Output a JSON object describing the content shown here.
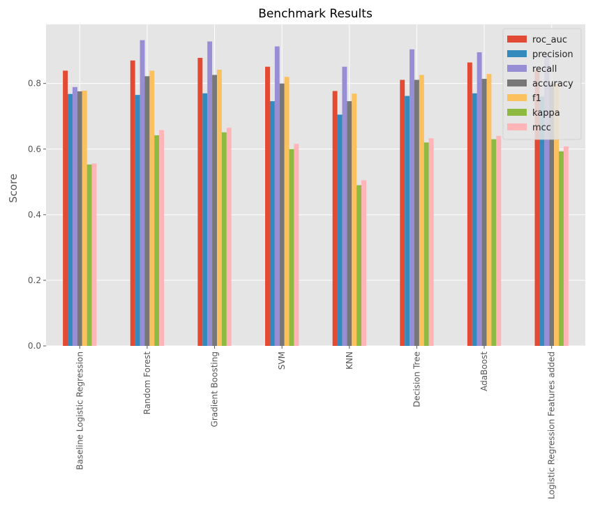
{
  "chart_data": {
    "type": "bar",
    "title": "Benchmark Results",
    "xlabel": "",
    "ylabel": "Score",
    "ylim": [
      0,
      0.98
    ],
    "yticks": [
      0.0,
      0.2,
      0.4,
      0.6,
      0.8
    ],
    "ytick_labels": [
      "0.0",
      "0.2",
      "0.4",
      "0.6",
      "0.8"
    ],
    "grid": true,
    "legend_position": "top-right",
    "categories": [
      "Baseline Logistic Regression",
      "Random Forest",
      "Gradient Boosting",
      "SVM",
      "KNN",
      "Decision Tree",
      "AdaBoost",
      "Logistic Regression Features added"
    ],
    "series": [
      {
        "name": "roc_auc",
        "color": "#e24a33",
        "values": [
          0.839,
          0.87,
          0.878,
          0.851,
          0.777,
          0.811,
          0.864,
          0.84
        ]
      },
      {
        "name": "precision",
        "color": "#348abd",
        "values": [
          0.768,
          0.765,
          0.77,
          0.746,
          0.705,
          0.762,
          0.77,
          0.76
        ]
      },
      {
        "name": "recall",
        "color": "#988ed5",
        "values": [
          0.789,
          0.932,
          0.928,
          0.913,
          0.851,
          0.904,
          0.895,
          0.88
        ]
      },
      {
        "name": "accuracy",
        "color": "#777777",
        "values": [
          0.776,
          0.822,
          0.826,
          0.8,
          0.746,
          0.811,
          0.814,
          0.8
        ]
      },
      {
        "name": "f1",
        "color": "#fbc15e",
        "values": [
          0.778,
          0.839,
          0.842,
          0.82,
          0.769,
          0.826,
          0.829,
          0.8
        ]
      },
      {
        "name": "kappa",
        "color": "#8eba42",
        "values": [
          0.553,
          0.642,
          0.651,
          0.6,
          0.49,
          0.62,
          0.63,
          0.593
        ]
      },
      {
        "name": "mcc",
        "color": "#ffb5b8",
        "values": [
          0.556,
          0.658,
          0.665,
          0.616,
          0.505,
          0.633,
          0.64,
          0.608
        ]
      }
    ]
  }
}
